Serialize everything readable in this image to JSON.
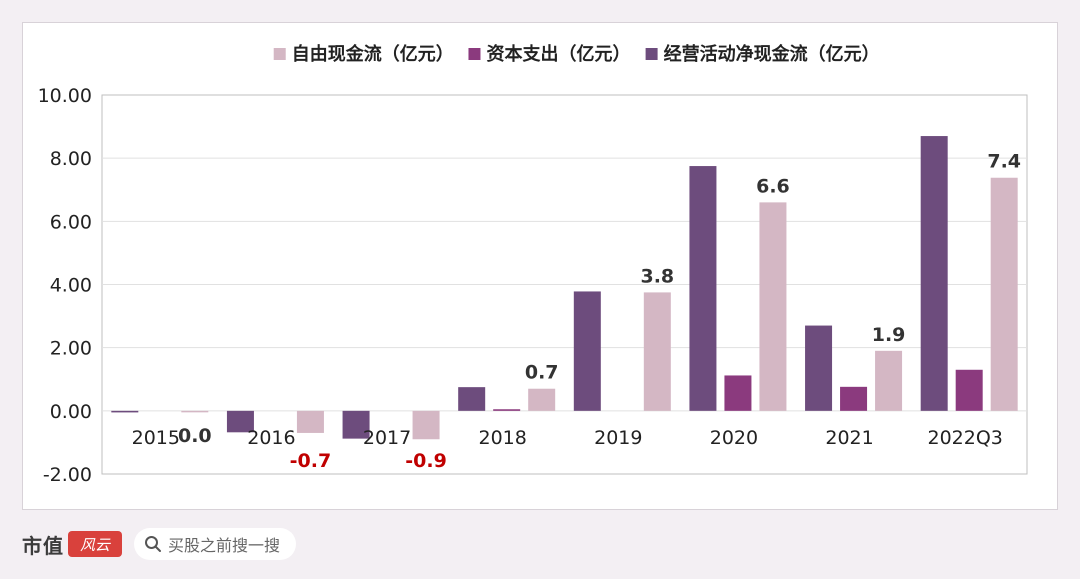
{
  "chart_data": {
    "type": "bar",
    "categories": [
      "2015",
      "2016",
      "2017",
      "2018",
      "2019",
      "2020",
      "2021",
      "2022Q3"
    ],
    "series": [
      {
        "name": "经营活动净现金流（亿元）",
        "color": "#6d4c7d",
        "values": [
          -0.05,
          -0.68,
          -0.88,
          0.75,
          3.78,
          7.75,
          2.7,
          8.7
        ]
      },
      {
        "name": "资本支出（亿元）",
        "color": "#8b3a7e",
        "values": [
          0.0,
          0.0,
          0.0,
          0.05,
          0.0,
          1.12,
          0.76,
          1.3
        ]
      },
      {
        "name": "自由现金流（亿元）",
        "color": "#d4b7c4",
        "values": [
          -0.03,
          -0.7,
          -0.9,
          0.7,
          3.75,
          6.6,
          1.9,
          7.38
        ],
        "labels": [
          "0.0",
          "-0.7",
          "-0.9",
          "0.7",
          "3.8",
          "6.6",
          "1.9",
          "7.4"
        ]
      }
    ],
    "legend_order": [
      "自由现金流（亿元）",
      "资本支出（亿元）",
      "经营活动净现金流（亿元）"
    ],
    "legend_colors": [
      "#d4b7c4",
      "#8b3a7e",
      "#6d4c7d"
    ],
    "yticks": [
      "10.00",
      "8.00",
      "6.00",
      "4.00",
      "2.00",
      "0.00",
      "-2.00"
    ],
    "ylim": [
      -2,
      10
    ],
    "grid": true,
    "legend_placement": "top-center",
    "label_colors": {
      "positive": "#333333",
      "negative": "#c00000"
    }
  },
  "footer": {
    "brand": "市值",
    "brand_logo": "风云",
    "search_placeholder": "买股之前搜一搜"
  }
}
